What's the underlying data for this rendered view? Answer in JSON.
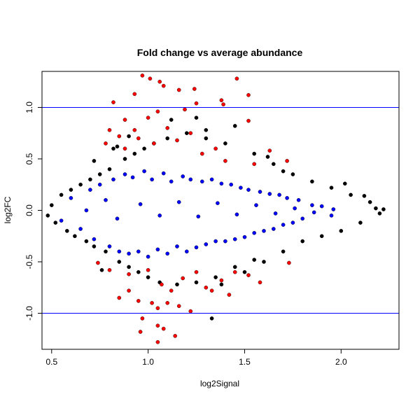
{
  "chart_data": {
    "type": "scatter",
    "title": "Fold change vs average abundance",
    "xlabel": "log2Signal",
    "ylabel": "log2FC",
    "xlim": [
      0.45,
      2.3
    ],
    "ylim": [
      -1.35,
      1.35
    ],
    "x_ticks": [
      "0.5",
      "1.0",
      "1.5",
      "2.0"
    ],
    "y_ticks": [
      "-1.0",
      "-0.5",
      "0.0",
      "0.5",
      "1.0"
    ],
    "reference_lines": [
      1.0,
      -1.0
    ],
    "grid": false,
    "colors": {
      "background_points": "#000000",
      "blue_points": "#0000ff",
      "red_points": "#ff0000",
      "reference_line": "#0000ff"
    },
    "series": [
      {
        "color": "#000000",
        "points": [
          [
            0.48,
            -0.05
          ],
          [
            0.5,
            0.05
          ],
          [
            0.52,
            -0.12
          ],
          [
            0.55,
            0.15
          ],
          [
            0.58,
            -0.2
          ],
          [
            0.6,
            0.2
          ],
          [
            0.62,
            -0.25
          ],
          [
            0.65,
            0.25
          ],
          [
            0.68,
            -0.3
          ],
          [
            0.7,
            0.3
          ],
          [
            0.72,
            -0.35
          ],
          [
            0.75,
            0.35
          ],
          [
            0.78,
            -0.4
          ],
          [
            0.8,
            0.4
          ],
          [
            0.82,
            0.6
          ],
          [
            0.85,
            -0.5
          ],
          [
            0.88,
            0.5
          ],
          [
            0.9,
            -0.55
          ],
          [
            0.93,
            0.55
          ],
          [
            0.95,
            -0.6
          ],
          [
            0.98,
            0.6
          ],
          [
            1.0,
            -0.65
          ],
          [
            1.03,
            0.65
          ],
          [
            1.06,
            -0.7
          ],
          [
            1.1,
            0.7
          ],
          [
            1.15,
            -0.72
          ],
          [
            1.2,
            0.75
          ],
          [
            1.25,
            -0.7
          ],
          [
            1.3,
            0.7
          ],
          [
            1.35,
            -0.65
          ],
          [
            1.33,
            -1.05
          ],
          [
            1.4,
            0.65
          ],
          [
            1.45,
            0.82
          ],
          [
            1.5,
            -0.6
          ],
          [
            1.55,
            0.55
          ],
          [
            1.6,
            -0.5
          ],
          [
            1.65,
            0.45
          ],
          [
            1.7,
            -0.4
          ],
          [
            1.75,
            0.35
          ],
          [
            1.8,
            -0.3
          ],
          [
            1.85,
            0.28
          ],
          [
            1.9,
            -0.25
          ],
          [
            1.95,
            0.22
          ],
          [
            2.0,
            -0.2
          ],
          [
            2.02,
            0.26
          ],
          [
            2.05,
            0.15
          ],
          [
            2.1,
            -0.12
          ],
          [
            2.12,
            0.14
          ],
          [
            2.15,
            0.08
          ],
          [
            2.18,
            0.02
          ],
          [
            2.2,
            -0.03
          ],
          [
            2.22,
            0.01
          ],
          [
            0.72,
            0.48
          ],
          [
            0.76,
            -0.58
          ],
          [
            0.84,
            0.62
          ],
          [
            0.9,
            0.72
          ],
          [
            1.12,
            0.88
          ],
          [
            1.25,
            0.9
          ],
          [
            1.3,
            0.78
          ],
          [
            1.38,
            -0.72
          ],
          [
            1.62,
            0.52
          ],
          [
            1.7,
            0.38
          ],
          [
            1.55,
            -0.48
          ],
          [
            1.45,
            -0.55
          ]
        ]
      },
      {
        "color": "#0000ff",
        "points": [
          [
            0.55,
            -0.1
          ],
          [
            0.6,
            0.12
          ],
          [
            0.65,
            -0.18
          ],
          [
            0.7,
            0.2
          ],
          [
            0.72,
            -0.28
          ],
          [
            0.75,
            0.25
          ],
          [
            0.8,
            -0.35
          ],
          [
            0.82,
            0.3
          ],
          [
            0.85,
            -0.4
          ],
          [
            0.88,
            0.35
          ],
          [
            0.9,
            -0.42
          ],
          [
            0.92,
            0.32
          ],
          [
            0.95,
            -0.4
          ],
          [
            0.98,
            0.38
          ],
          [
            1.0,
            -0.45
          ],
          [
            1.02,
            0.3
          ],
          [
            1.05,
            -0.38
          ],
          [
            1.08,
            0.36
          ],
          [
            1.1,
            -0.42
          ],
          [
            1.12,
            0.28
          ],
          [
            1.15,
            -0.35
          ],
          [
            1.18,
            0.33
          ],
          [
            1.2,
            -0.4
          ],
          [
            1.22,
            0.3
          ],
          [
            1.25,
            -0.36
          ],
          [
            1.28,
            0.28
          ],
          [
            1.3,
            -0.33
          ],
          [
            1.33,
            0.3
          ],
          [
            1.35,
            -0.3
          ],
          [
            1.38,
            0.26
          ],
          [
            1.4,
            -0.3
          ],
          [
            1.43,
            0.25
          ],
          [
            1.45,
            -0.28
          ],
          [
            1.48,
            0.22
          ],
          [
            1.5,
            -0.26
          ],
          [
            1.52,
            0.2
          ],
          [
            1.55,
            -0.22
          ],
          [
            1.58,
            0.18
          ],
          [
            1.6,
            -0.2
          ],
          [
            1.63,
            0.16
          ],
          [
            1.65,
            -0.18
          ],
          [
            1.68,
            0.15
          ],
          [
            1.7,
            -0.14
          ],
          [
            1.72,
            0.12
          ],
          [
            1.75,
            -0.12
          ],
          [
            1.78,
            0.1
          ],
          [
            1.8,
            -0.08
          ],
          [
            1.85,
            0.05
          ],
          [
            0.78,
            0.1
          ],
          [
            0.84,
            -0.08
          ],
          [
            0.96,
            0.06
          ],
          [
            1.06,
            -0.05
          ],
          [
            1.16,
            0.08
          ],
          [
            1.26,
            -0.06
          ],
          [
            1.36,
            0.07
          ],
          [
            1.46,
            -0.04
          ],
          [
            1.56,
            0.05
          ],
          [
            1.66,
            -0.03
          ],
          [
            1.76,
            0.02
          ],
          [
            1.86,
            -0.02
          ],
          [
            1.96,
            0.01
          ],
          [
            0.68,
            0.0
          ],
          [
            1.9,
            0.04
          ],
          [
            1.95,
            -0.05
          ]
        ]
      },
      {
        "color": "#ff0000",
        "points": [
          [
            0.97,
            1.31
          ],
          [
            1.01,
            1.28
          ],
          [
            1.06,
            1.25
          ],
          [
            1.08,
            1.21
          ],
          [
            1.16,
            1.17
          ],
          [
            1.24,
            1.18
          ],
          [
            1.46,
            1.28
          ],
          [
            1.52,
            1.12
          ],
          [
            0.93,
            1.13
          ],
          [
            1.25,
            1.04
          ],
          [
            1.38,
            1.07
          ],
          [
            1.39,
            1.03
          ],
          [
            0.82,
            1.05
          ],
          [
            1.19,
            0.98
          ],
          [
            1.05,
            0.96
          ],
          [
            0.88,
            0.88
          ],
          [
            1.0,
            0.9
          ],
          [
            1.52,
            0.87
          ],
          [
            0.8,
            0.78
          ],
          [
            0.85,
            0.72
          ],
          [
            0.95,
            0.7
          ],
          [
            1.1,
            0.8
          ],
          [
            1.22,
            0.75
          ],
          [
            1.35,
            0.6
          ],
          [
            1.63,
            0.58
          ],
          [
            1.72,
            0.48
          ],
          [
            0.74,
            -0.51
          ],
          [
            0.8,
            -0.58
          ],
          [
            0.9,
            -0.62
          ],
          [
            1.0,
            -0.58
          ],
          [
            1.07,
            -0.72
          ],
          [
            1.12,
            -0.78
          ],
          [
            1.18,
            -0.66
          ],
          [
            1.25,
            -0.6
          ],
          [
            1.33,
            -0.78
          ],
          [
            1.38,
            -0.68
          ],
          [
            1.45,
            -0.6
          ],
          [
            1.52,
            -0.63
          ],
          [
            1.58,
            -0.7
          ],
          [
            1.73,
            -0.51
          ],
          [
            0.85,
            -0.85
          ],
          [
            0.95,
            -0.88
          ],
          [
            1.02,
            -0.9
          ],
          [
            1.05,
            -0.95
          ],
          [
            1.1,
            -0.9
          ],
          [
            1.16,
            -0.93
          ],
          [
            1.22,
            -0.98
          ],
          [
            0.97,
            -1.05
          ],
          [
            1.05,
            -1.12
          ],
          [
            1.08,
            -1.15
          ],
          [
            0.96,
            -1.18
          ],
          [
            1.14,
            -1.22
          ],
          [
            1.05,
            -1.28
          ],
          [
            0.9,
            -0.78
          ],
          [
            1.3,
            -0.75
          ],
          [
            1.42,
            -0.82
          ],
          [
            0.78,
            0.65
          ],
          [
            0.88,
            0.6
          ],
          [
            0.93,
            0.78
          ],
          [
            1.03,
            0.65
          ],
          [
            1.15,
            0.68
          ],
          [
            1.28,
            0.55
          ],
          [
            1.4,
            0.48
          ],
          [
            1.55,
            0.45
          ]
        ]
      }
    ]
  }
}
